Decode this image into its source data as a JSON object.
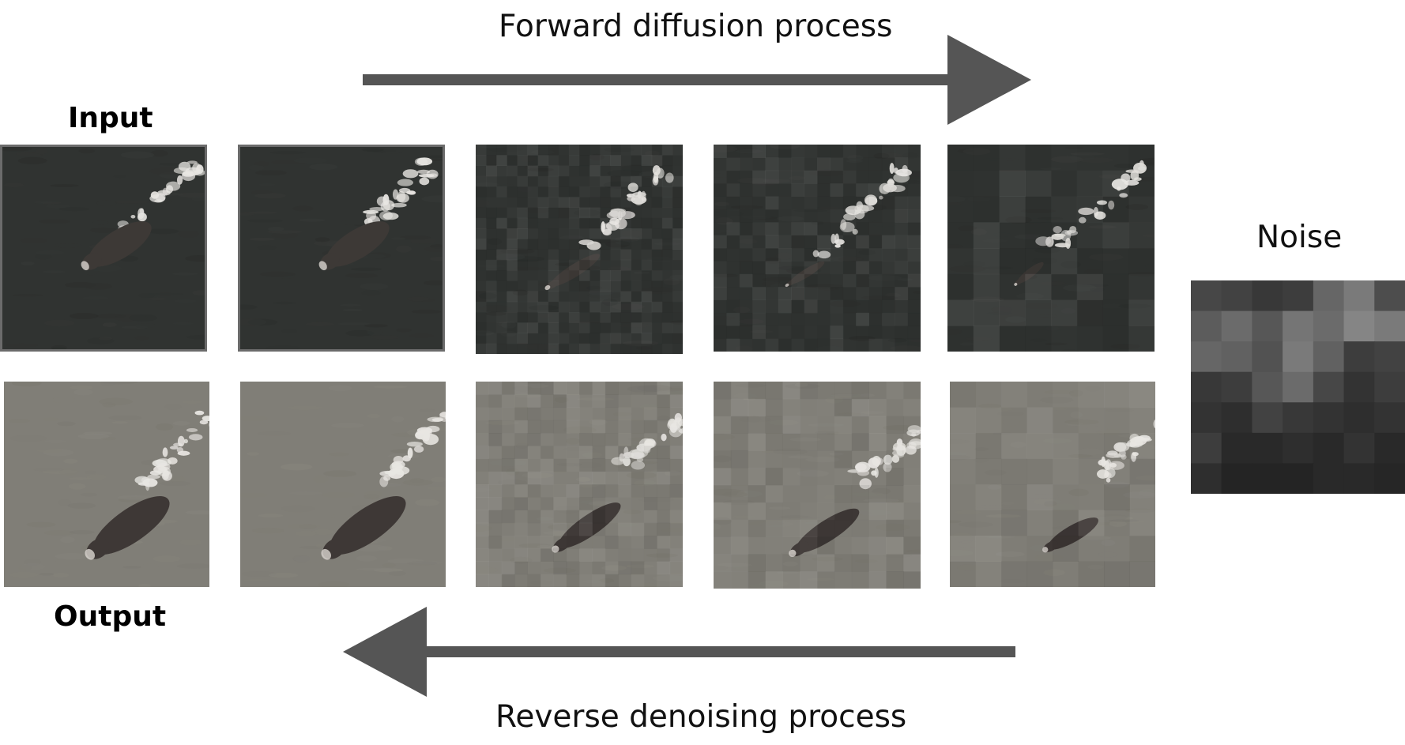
{
  "labels": {
    "forward": "Forward diffusion process",
    "reverse": "Reverse denoising process",
    "input": "Input",
    "output": "Output",
    "noise": "Noise"
  },
  "colors": {
    "arrow": "#555555",
    "ocean_dark": "#2f3230",
    "ocean_light": "#7f7d77",
    "whale_dark": "#3a3431",
    "splash": "#e8e6e2"
  },
  "rows": {
    "top": {
      "name": "input-row",
      "tone": "dark",
      "pixelation_steps": [
        0,
        0,
        8,
        10,
        14
      ]
    },
    "bottom": {
      "name": "output-row",
      "tone": "light",
      "pixelation_steps": [
        0,
        0,
        10,
        12,
        14
      ]
    }
  },
  "noise": {
    "grid": [
      [
        0.28,
        0.26,
        0.22,
        0.24,
        0.4,
        0.48,
        0.3
      ],
      [
        0.36,
        0.42,
        0.34,
        0.46,
        0.42,
        0.52,
        0.48
      ],
      [
        0.4,
        0.38,
        0.32,
        0.48,
        0.38,
        0.24,
        0.26
      ],
      [
        0.22,
        0.24,
        0.34,
        0.42,
        0.28,
        0.2,
        0.24
      ],
      [
        0.2,
        0.18,
        0.26,
        0.22,
        0.2,
        0.18,
        0.2
      ],
      [
        0.24,
        0.16,
        0.16,
        0.18,
        0.16,
        0.2,
        0.16
      ],
      [
        0.18,
        0.14,
        0.14,
        0.14,
        0.16,
        0.16,
        0.15
      ]
    ]
  }
}
